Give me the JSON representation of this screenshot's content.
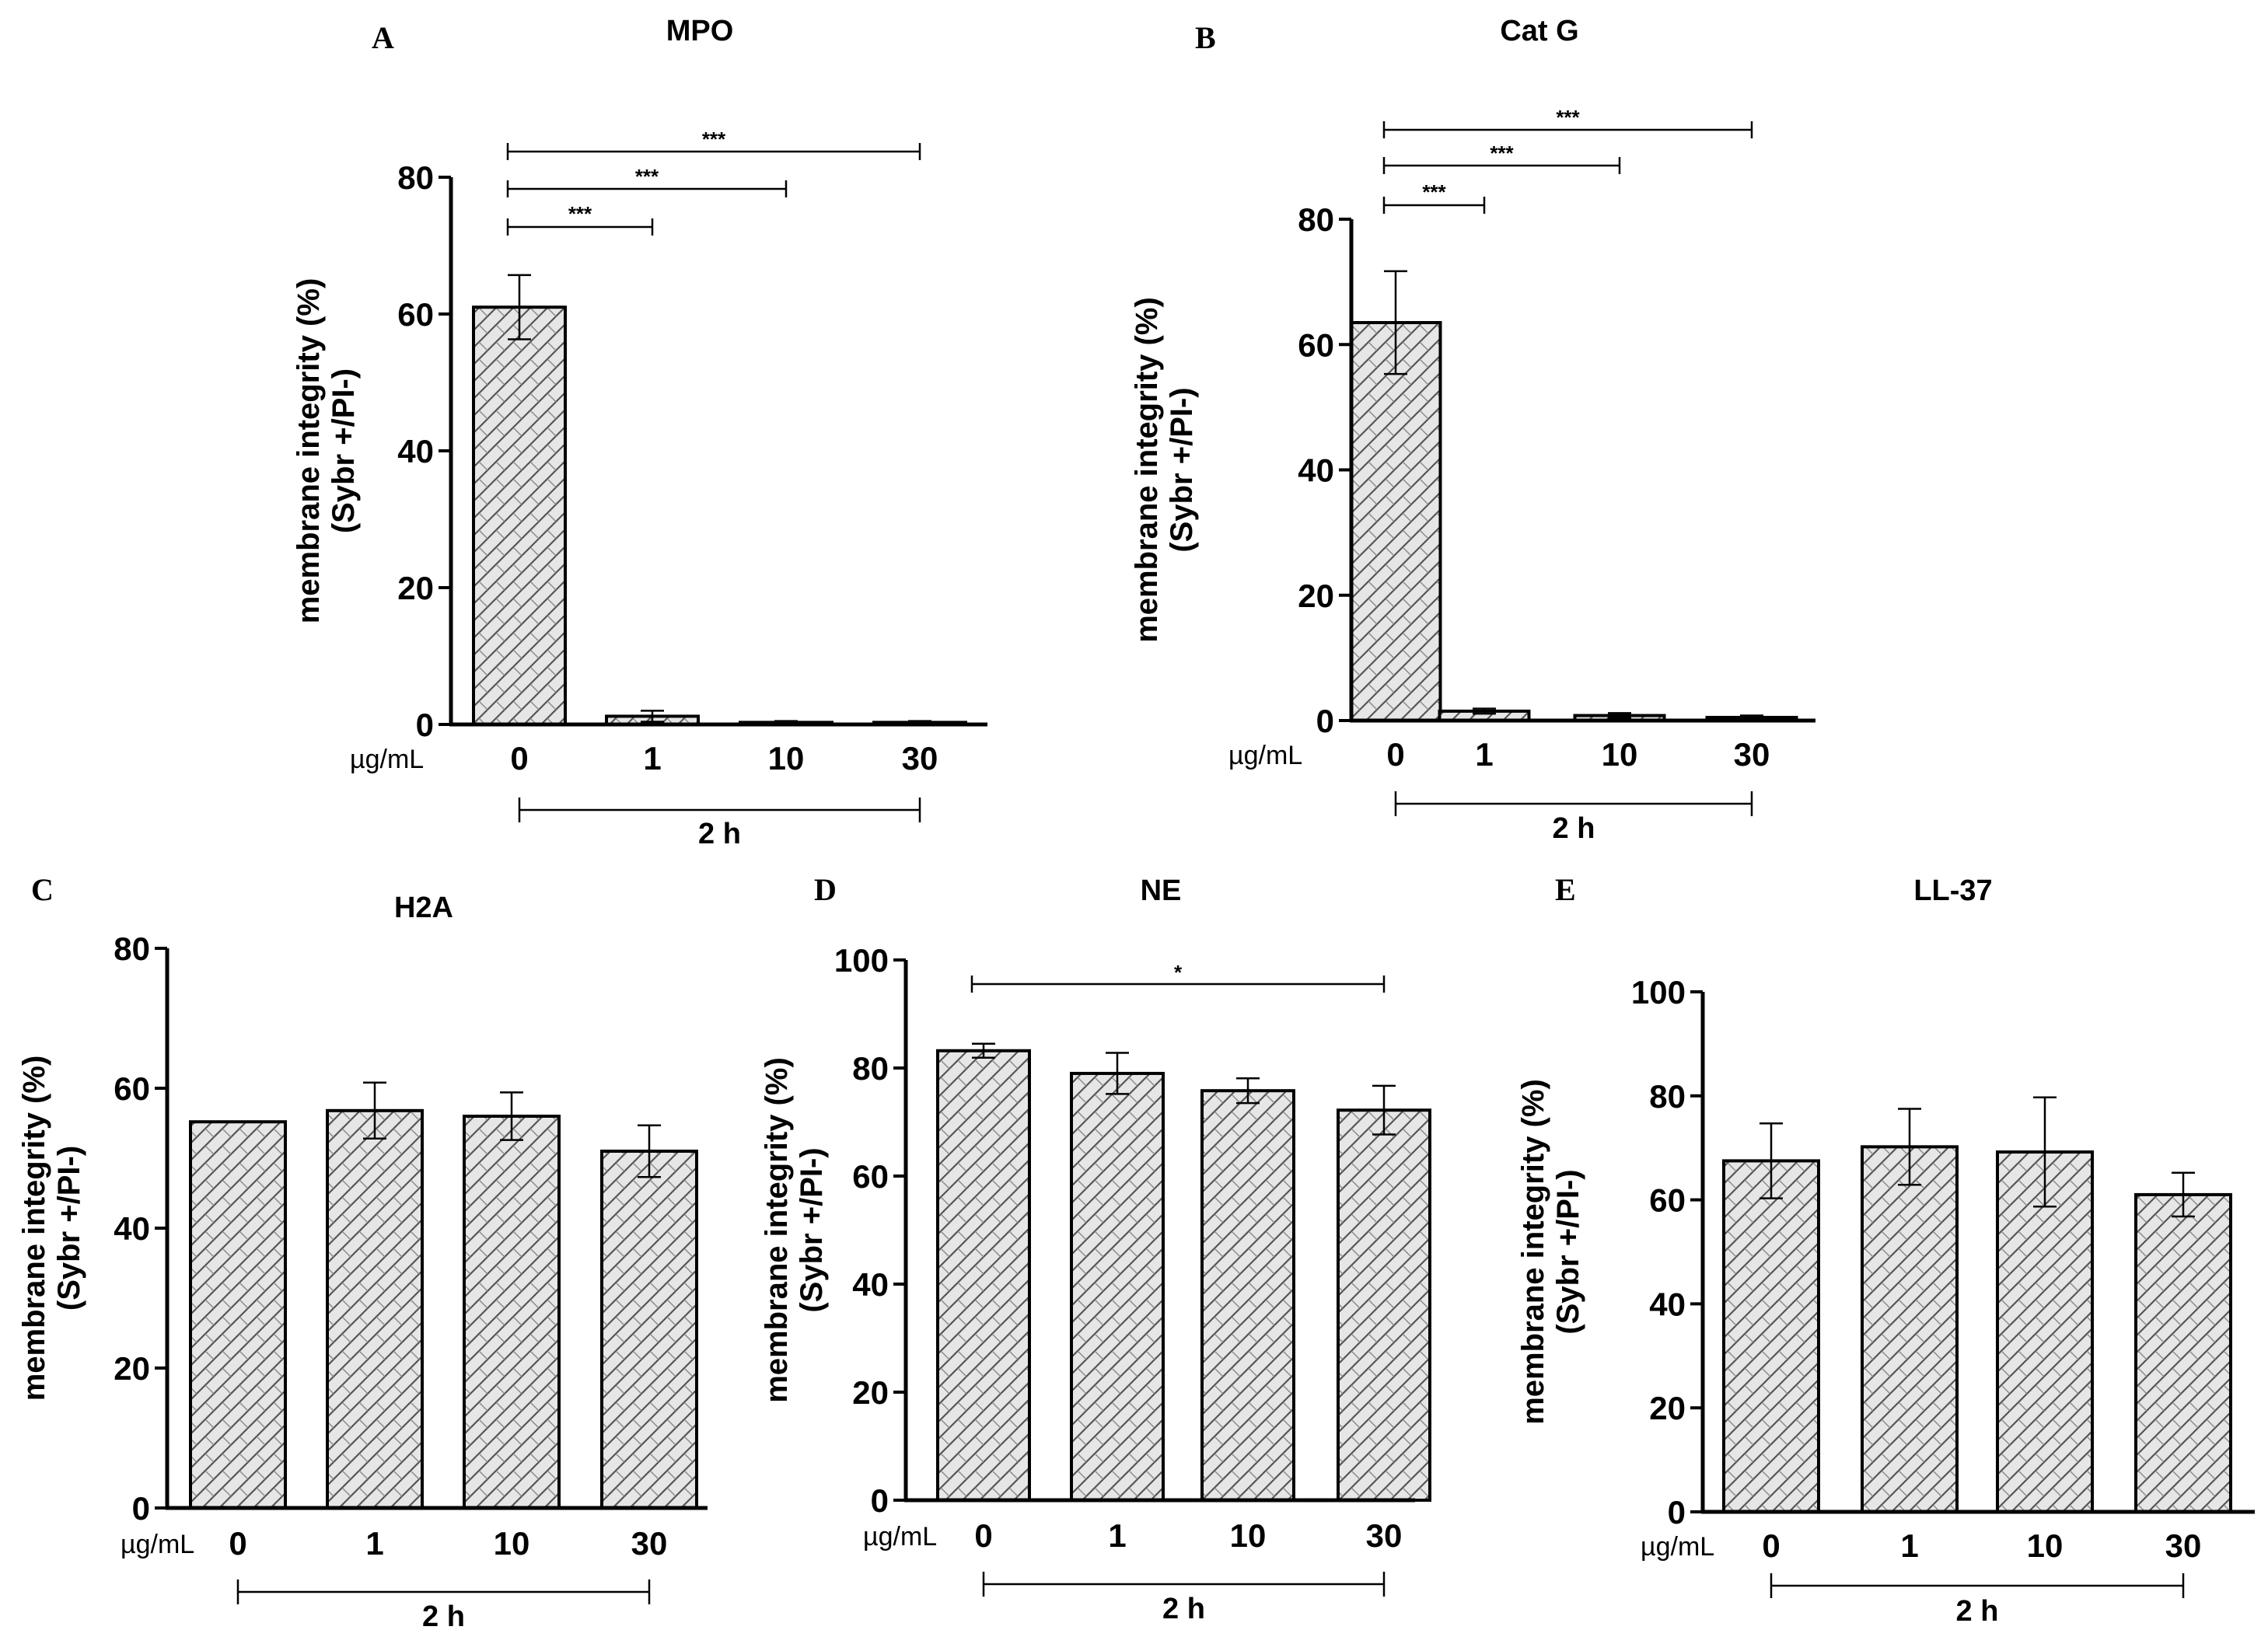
{
  "chart_data": [
    {
      "panel": "A",
      "title": "MPO",
      "type": "bar",
      "unit_label": "µg/mL",
      "group_label": "2 h",
      "ylabel_line1": "membrane integrity (%)",
      "ylabel_line2": "(Sybr +/PI-)",
      "categories": [
        "0",
        "1",
        "10",
        "30"
      ],
      "values": [
        61,
        1.2,
        0.3,
        0.3
      ],
      "errors": [
        4.7,
        0.8,
        0.2,
        0.2
      ],
      "ylim": [
        0,
        80
      ],
      "yticks": [
        0,
        20,
        40,
        60,
        80
      ],
      "ytick_labels": [
        "0",
        "20",
        "40",
        "60",
        "80"
      ],
      "significance": [
        {
          "from": 0,
          "to": 1,
          "label": "***"
        },
        {
          "from": 0,
          "to": 2,
          "label": "***"
        },
        {
          "from": 0,
          "to": 3,
          "label": "***"
        }
      ]
    },
    {
      "panel": "B",
      "title": "Cat G",
      "type": "bar",
      "unit_label": "µg/mL",
      "group_label": "2 h",
      "ylabel_line1": "membrane integrity (%)",
      "ylabel_line2": "(Sybr +/PI-)",
      "categories": [
        "0",
        "1",
        "10",
        "30"
      ],
      "values": [
        63.5,
        1.5,
        0.8,
        0.5
      ],
      "errors": [
        8.2,
        0.4,
        0.4,
        0.3
      ],
      "ylim": [
        0,
        80
      ],
      "yticks": [
        0,
        20,
        40,
        60,
        80
      ],
      "ytick_labels": [
        "0",
        "20",
        "40",
        "60",
        "80"
      ],
      "significance": [
        {
          "from": 0,
          "to": 1,
          "label": "***"
        },
        {
          "from": 0,
          "to": 2,
          "label": "***"
        },
        {
          "from": 0,
          "to": 3,
          "label": "***"
        }
      ]
    },
    {
      "panel": "C",
      "title": "H2A",
      "type": "bar",
      "unit_label": "µg/mL",
      "group_label": "2 h",
      "ylabel_line1": "membrane integrity (%)",
      "ylabel_line2": "(Sybr +/PI-)",
      "categories": [
        "0",
        "1",
        "10",
        "30"
      ],
      "values": [
        55.2,
        56.8,
        56,
        51
      ],
      "errors": [
        0,
        4,
        3.4,
        3.7
      ],
      "ylim": [
        0,
        80
      ],
      "yticks": [
        0,
        20,
        40,
        60,
        80
      ],
      "ytick_labels": [
        "0",
        "20",
        "40",
        "60",
        "80"
      ],
      "significance": []
    },
    {
      "panel": "D",
      "title": "NE",
      "type": "bar",
      "unit_label": "µg/mL",
      "group_label": "2 h",
      "ylabel_line1": "membrane integrity (%)",
      "ylabel_line2": "(Sybr +/PI-)",
      "categories": [
        "0",
        "1",
        "10",
        "30"
      ],
      "values": [
        83.2,
        79,
        75.8,
        72.2
      ],
      "errors": [
        1.3,
        3.8,
        2.3,
        4.5
      ],
      "ylim": [
        0,
        100
      ],
      "yticks": [
        0,
        20,
        40,
        60,
        80,
        100
      ],
      "ytick_labels": [
        "0",
        "20",
        "40",
        "60",
        "80",
        "100"
      ],
      "significance": [
        {
          "from": 0,
          "to": 3,
          "label": "*"
        }
      ]
    },
    {
      "panel": "E",
      "title": "LL-37",
      "type": "bar",
      "unit_label": "µg/mL",
      "group_label": "2 h",
      "ylabel_line1": "membrane integrity (%)",
      "ylabel_line2": "(Sybr +/PI-)",
      "categories": [
        "0",
        "1",
        "10",
        "30"
      ],
      "values": [
        67.5,
        70.2,
        69.2,
        61
      ],
      "errors": [
        7.2,
        7.3,
        10.5,
        4.2
      ],
      "ylim": [
        0,
        100
      ],
      "yticks": [
        0,
        20,
        40,
        60,
        80,
        100
      ],
      "ytick_labels": [
        "0",
        "20",
        "40",
        "60",
        "80",
        "100"
      ],
      "significance": []
    }
  ]
}
